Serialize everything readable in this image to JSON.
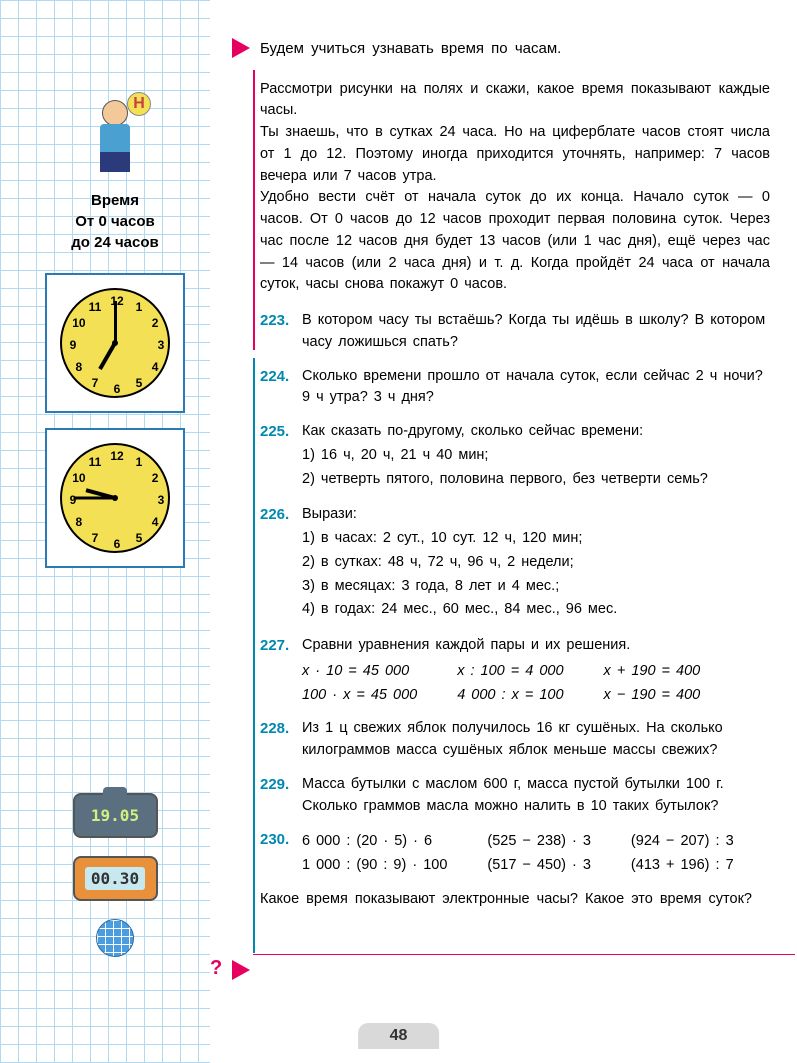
{
  "sidebar": {
    "mascot_letter": "Н",
    "title_line1": "Время",
    "title_line2": "От 0 часов",
    "title_line3": "до 24 часов",
    "clock1": {
      "hour_angle": 210,
      "minute_angle": 0
    },
    "clock2": {
      "hour_angle": 285,
      "minute_angle": 270
    },
    "digital1": "19.05",
    "digital2": "00.30"
  },
  "learn_line": "Будем учиться узнавать время по часам.",
  "intro": {
    "p1": "Рассмотри рисунки на полях и скажи, какое время показывают каждые часы.",
    "p2": "Ты знаешь, что в сутках 24 часа. Но на циферблате часов стоят числа от 1 до 12. Поэтому иногда приходится уточнять, например: 7 часов вечера или 7 часов утра.",
    "p3": "Удобно вести счёт от начала суток до их конца. Начало суток — 0 часов. От 0 часов до 12 часов проходит первая половина суток. Через час после 12 часов дня будет 13 часов (или 1 час дня), ещё через час — 14 часов (или 2 часа дня) и т. д. Когда пройдёт 24 часа от начала суток, часы снова покажут 0 часов."
  },
  "ex223": {
    "num": "223.",
    "text": "В котором часу ты встаёшь? Когда ты идёшь в школу? В котором часу ложишься спать?"
  },
  "ex224": {
    "num": "224.",
    "text": "Сколько времени прошло от начала суток, если сейчас 2 ч ночи? 9 ч утра? 3 ч дня?"
  },
  "ex225": {
    "num": "225.",
    "lead": "Как сказать по-другому, сколько сейчас времени:",
    "l1": "1) 16 ч, 20 ч, 21 ч 40 мин;",
    "l2": "2) четверть пятого, половина первого, без четверти семь?"
  },
  "ex226": {
    "num": "226.",
    "lead": "Вырази:",
    "l1": "1) в часах: 2 сут., 10 сут. 12 ч, 120 мин;",
    "l2": "2) в сутках: 48 ч, 72 ч, 96 ч, 2 недели;",
    "l3": "3) в месяцах: 3 года, 8 лет и 4 мес.;",
    "l4": "4) в годах: 24 мес., 60 мес., 84 мес., 96 мес."
  },
  "ex227": {
    "num": "227.",
    "lead": "Сравни уравнения каждой пары и их решения.",
    "c1r1": "x · 10 = 45 000",
    "c1r2": "100 · x = 45 000",
    "c2r1": "x : 100 = 4 000",
    "c2r2": "4 000 : x = 100",
    "c3r1": "x + 190 = 400",
    "c3r2": "x − 190 = 400"
  },
  "ex228": {
    "num": "228.",
    "text": "Из 1 ц свежих яблок получилось 16 кг сушёных. На сколько килограммов масса сушёных яблок меньше массы свежих?"
  },
  "ex229": {
    "num": "229.",
    "text": "Масса бутылки с маслом 600 г, масса пустой бутылки 100 г. Сколько граммов масла можно налить в 10 таких бутылок?"
  },
  "ex230": {
    "num": "230.",
    "c1r1": "6 000 : (20 · 5) · 6",
    "c1r2": "1 000 : (90 : 9) · 100",
    "c2r1": "(525 − 238) · 3",
    "c2r2": "(517 − 450) · 3",
    "c3r1": "(924 − 207) : 3",
    "c3r2": "(413 + 196) : 7"
  },
  "bottom_q": "Какое время показывают электронные часы? Какое это время суток?",
  "page_number": "48",
  "clock_numbers": [
    "12",
    "1",
    "2",
    "3",
    "4",
    "5",
    "6",
    "7",
    "8",
    "9",
    "10",
    "11"
  ]
}
